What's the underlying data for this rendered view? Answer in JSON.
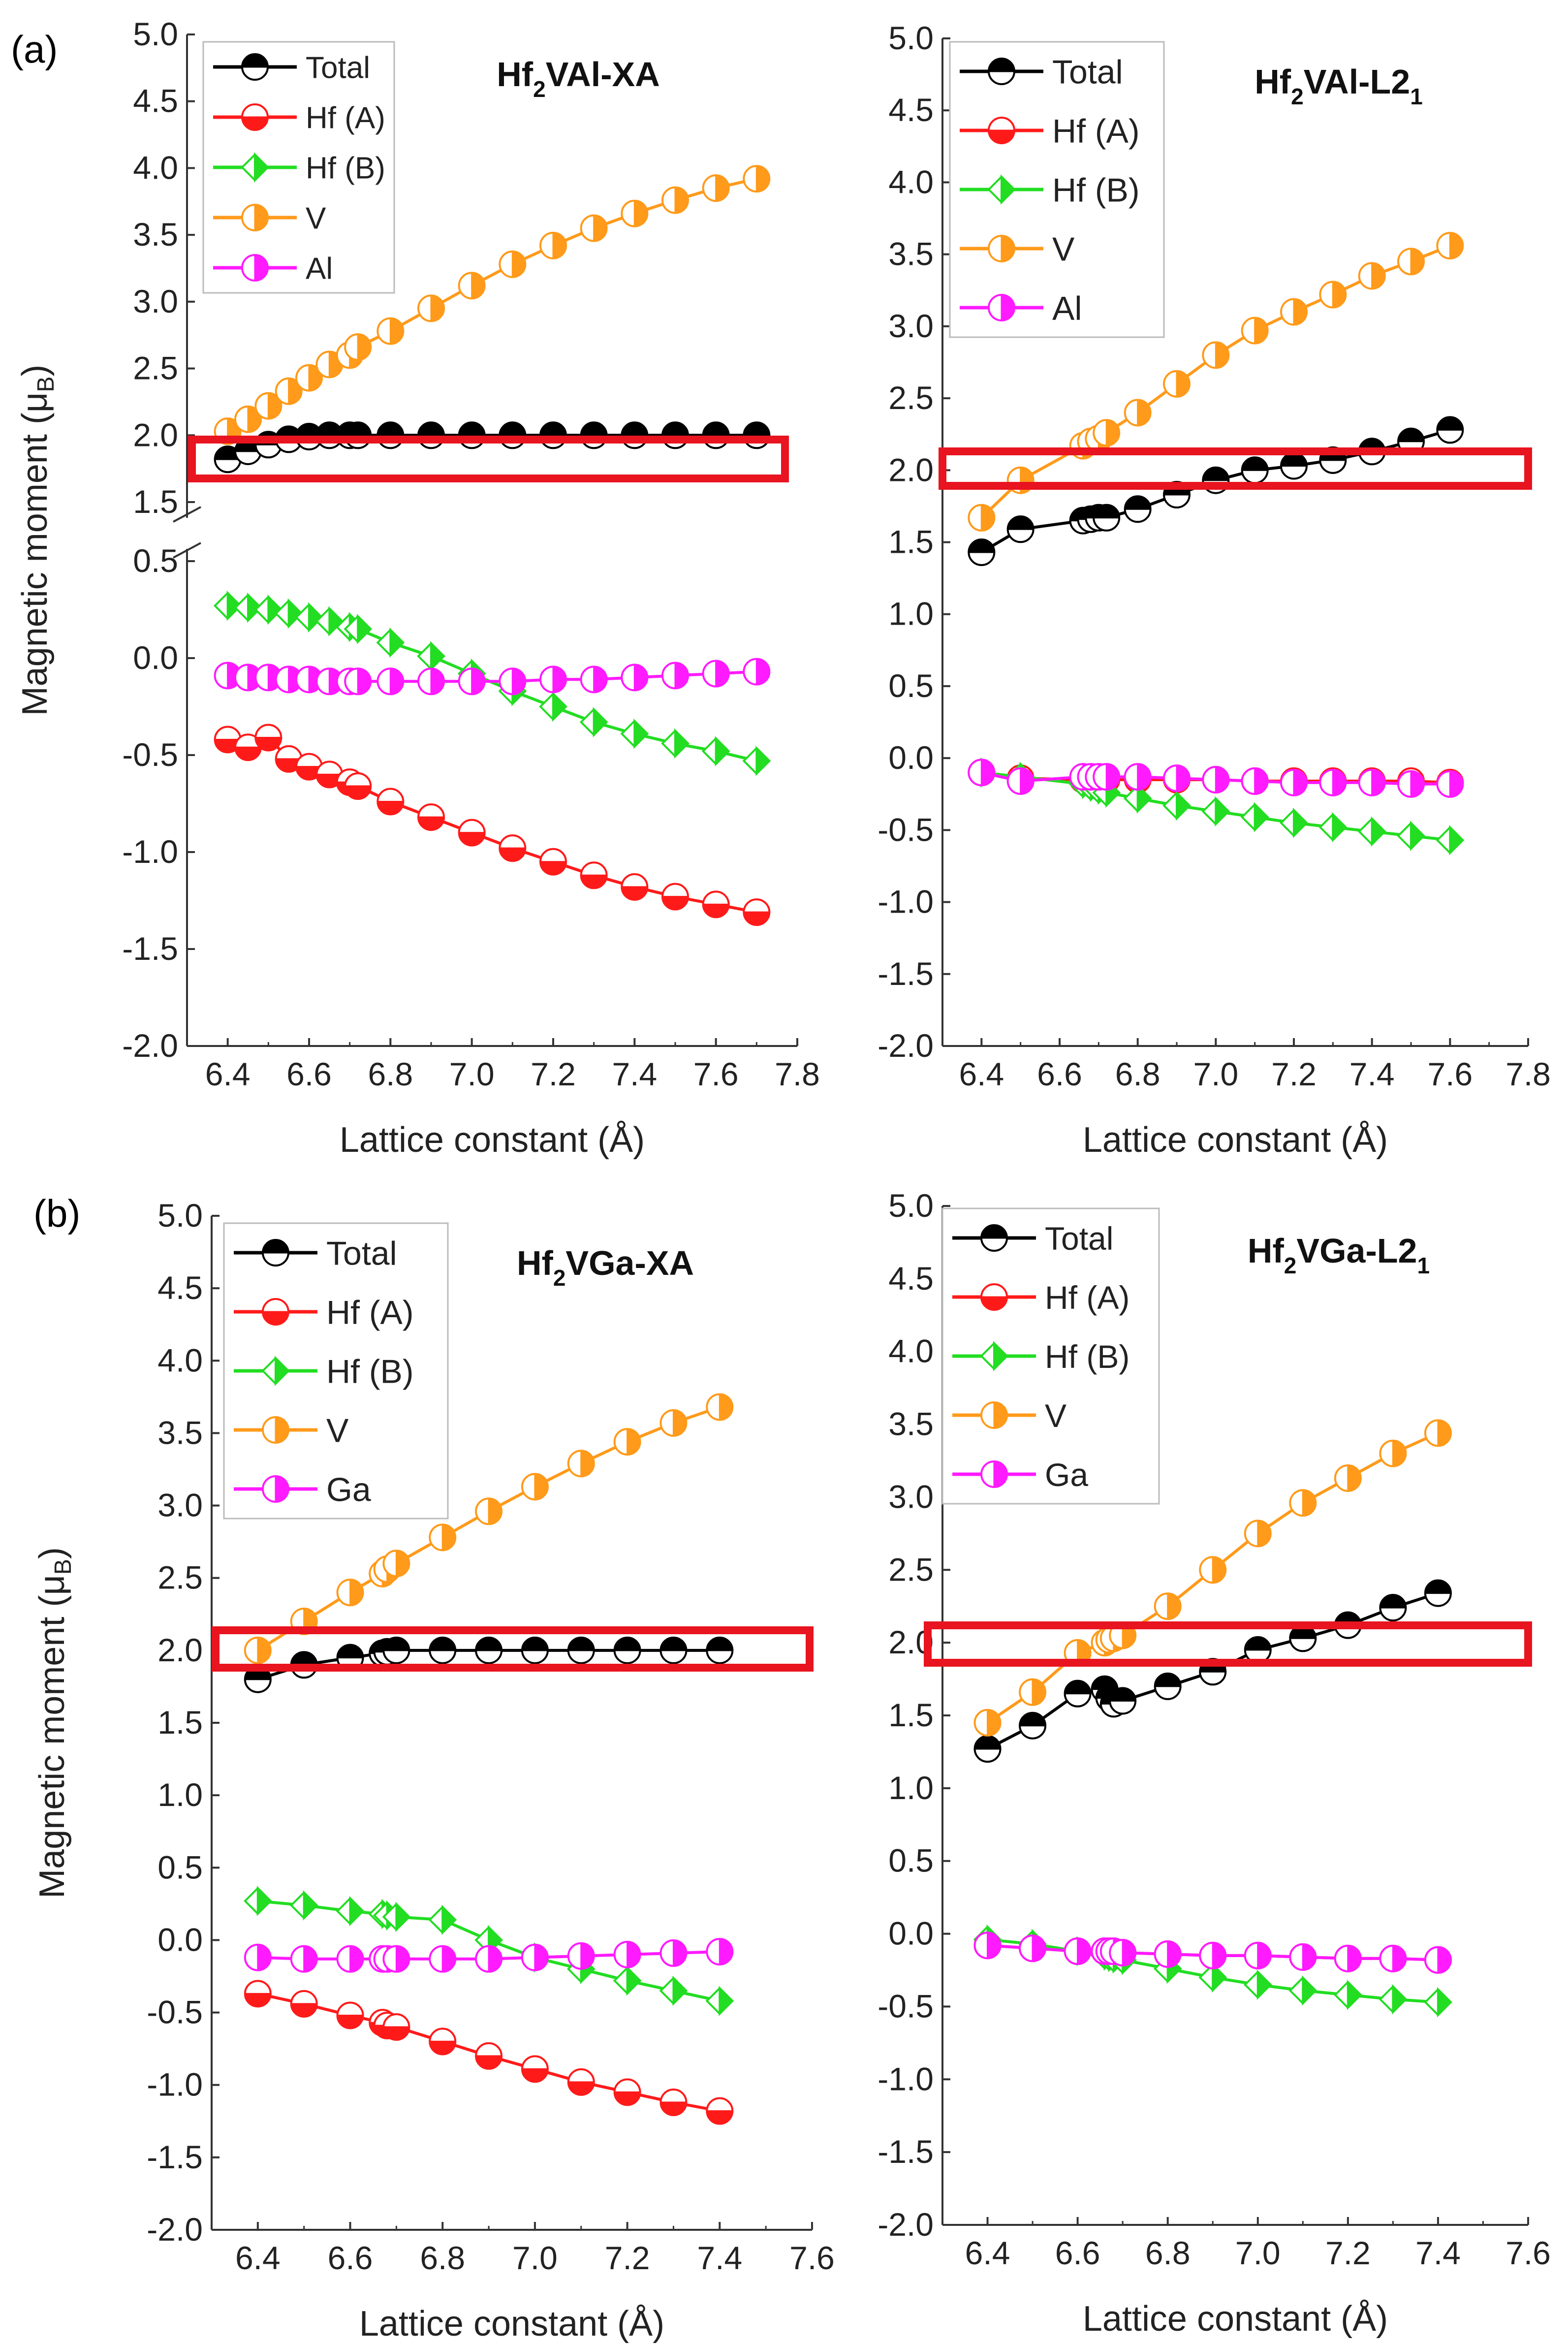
{
  "figure": {
    "panel_a_label": "(a)",
    "panel_b_label": "(b)"
  },
  "chart_data": [
    {
      "type": "line",
      "title_main": "Hf",
      "title_sub": "2",
      "title_rest": "VAl-XA",
      "xlabel": "Lattice constant (Å)",
      "ylabel": "Magnetic moment (μB)",
      "ylabel_main": "Magnetic moment (μ",
      "ylabel_sub": "B",
      "ylabel_close": ")",
      "xlim": [
        6.3,
        7.8
      ],
      "ylim": [
        -2.0,
        5.0
      ],
      "broken_axis": true,
      "x_ticks": [
        "6.4",
        "6.6",
        "6.8",
        "7.0",
        "7.2",
        "7.4",
        "7.6",
        "7.8"
      ],
      "x_tick_values": [
        6.4,
        6.6,
        6.8,
        7.0,
        7.2,
        7.4,
        7.6,
        7.8
      ],
      "y_ticks_lower": [
        "-2.0",
        "-1.5",
        "-1.0",
        "-0.5",
        "0.0",
        "0.5"
      ],
      "y_tick_values_lower": [
        -2.0,
        -1.5,
        -1.0,
        -0.5,
        0.0,
        0.5
      ],
      "y_ticks_upper": [
        "1.5",
        "2.0",
        "2.5",
        "3.0",
        "3.5",
        "4.0",
        "4.5",
        "5.0"
      ],
      "y_tick_values_upper": [
        1.5,
        2.0,
        2.5,
        3.0,
        3.5,
        4.0,
        4.5,
        5.0
      ],
      "highlight_y": 2.0,
      "highlight_color": "#e8141f",
      "legend_position": "top-left",
      "series": [
        {
          "name": "Total",
          "color": "#000000",
          "marker": "circle-top",
          "x": [
            6.4,
            6.45,
            6.5,
            6.55,
            6.6,
            6.65,
            6.7,
            6.72,
            6.8,
            6.9,
            7.0,
            7.1,
            7.2,
            7.3,
            7.4,
            7.5,
            7.6,
            7.7
          ],
          "y": [
            1.82,
            1.88,
            1.93,
            1.97,
            1.99,
            2.0,
            2.0,
            2.0,
            2.0,
            2.0,
            2.0,
            2.0,
            2.0,
            2.0,
            2.0,
            2.0,
            2.0,
            2.0
          ]
        },
        {
          "name": "Hf (A)",
          "color": "#ff1a1a",
          "marker": "circle-bottom",
          "x": [
            6.4,
            6.45,
            6.5,
            6.55,
            6.6,
            6.65,
            6.7,
            6.72,
            6.8,
            6.9,
            7.0,
            7.1,
            7.2,
            7.3,
            7.4,
            7.5,
            7.6,
            7.7
          ],
          "y": [
            -0.42,
            -0.46,
            -0.41,
            -0.52,
            -0.56,
            -0.6,
            -0.64,
            -0.66,
            -0.74,
            -0.82,
            -0.9,
            -0.98,
            -1.05,
            -1.12,
            -1.18,
            -1.23,
            -1.27,
            -1.31
          ]
        },
        {
          "name": "Hf (B)",
          "color": "#22dd22",
          "marker": "diamond-right",
          "x": [
            6.4,
            6.45,
            6.5,
            6.55,
            6.6,
            6.65,
            6.7,
            6.72,
            6.8,
            6.9,
            7.0,
            7.1,
            7.2,
            7.3,
            7.4,
            7.5,
            7.6,
            7.7
          ],
          "y": [
            0.27,
            0.26,
            0.25,
            0.23,
            0.21,
            0.19,
            0.16,
            0.15,
            0.08,
            0.01,
            -0.08,
            -0.17,
            -0.25,
            -0.33,
            -0.39,
            -0.44,
            -0.48,
            -0.53
          ]
        },
        {
          "name": "V",
          "color": "#ff9a1a",
          "marker": "circle-right",
          "x": [
            6.4,
            6.45,
            6.5,
            6.55,
            6.6,
            6.65,
            6.7,
            6.72,
            6.8,
            6.9,
            7.0,
            7.1,
            7.2,
            7.3,
            7.4,
            7.5,
            7.6,
            7.7
          ],
          "y": [
            2.03,
            2.12,
            2.22,
            2.33,
            2.43,
            2.53,
            2.6,
            2.66,
            2.78,
            2.95,
            3.12,
            3.28,
            3.42,
            3.55,
            3.66,
            3.76,
            3.85,
            3.92
          ]
        },
        {
          "name": "Al",
          "color": "#ff1aff",
          "marker": "circle-right",
          "x": [
            6.4,
            6.45,
            6.5,
            6.55,
            6.6,
            6.65,
            6.7,
            6.72,
            6.8,
            6.9,
            7.0,
            7.1,
            7.2,
            7.3,
            7.4,
            7.5,
            7.6,
            7.7
          ],
          "y": [
            -0.09,
            -0.1,
            -0.1,
            -0.11,
            -0.11,
            -0.12,
            -0.12,
            -0.12,
            -0.12,
            -0.12,
            -0.12,
            -0.12,
            -0.11,
            -0.11,
            -0.1,
            -0.09,
            -0.08,
            -0.07
          ]
        }
      ]
    },
    {
      "type": "line",
      "title_main": "Hf",
      "title_sub": "2",
      "title_rest": "VAl-L2",
      "title_sub2": "1",
      "xlabel": "Lattice constant (Å)",
      "xlim": [
        6.3,
        7.8
      ],
      "ylim": [
        -2.0,
        5.0
      ],
      "broken_axis": false,
      "x_ticks": [
        "6.4",
        "6.6",
        "6.8",
        "7.0",
        "7.2",
        "7.4",
        "7.6",
        "7.8"
      ],
      "x_tick_values": [
        6.4,
        6.6,
        6.8,
        7.0,
        7.2,
        7.4,
        7.6,
        7.8
      ],
      "y_ticks": [
        "-2.0",
        "-1.5",
        "-1.0",
        "-0.5",
        "0.0",
        "0.5",
        "1.0",
        "1.5",
        "2.0",
        "2.5",
        "3.0",
        "3.5",
        "4.0",
        "4.5",
        "5.0"
      ],
      "y_tick_values": [
        -2.0,
        -1.5,
        -1.0,
        -0.5,
        0.0,
        0.5,
        1.0,
        1.5,
        2.0,
        2.5,
        3.0,
        3.5,
        4.0,
        4.5,
        5.0
      ],
      "highlight_y": 2.0,
      "highlight_color": "#e8141f",
      "legend_position": "top-left",
      "series": [
        {
          "name": "Total",
          "color": "#000000",
          "marker": "circle-top",
          "x": [
            6.4,
            6.5,
            6.66,
            6.68,
            6.7,
            6.72,
            6.8,
            6.9,
            7.0,
            7.1,
            7.2,
            7.3,
            7.4,
            7.5,
            7.6
          ],
          "y": [
            1.43,
            1.59,
            1.65,
            1.66,
            1.67,
            1.67,
            1.73,
            1.83,
            1.93,
            2.0,
            2.03,
            2.07,
            2.13,
            2.2,
            2.28
          ]
        },
        {
          "name": "Hf (A)",
          "color": "#ff1a1a",
          "marker": "circle-bottom",
          "x": [
            6.4,
            6.5,
            6.66,
            6.68,
            6.7,
            6.72,
            6.8,
            6.9,
            7.0,
            7.1,
            7.2,
            7.3,
            7.4,
            7.5,
            7.6
          ],
          "y": [
            -0.1,
            -0.14,
            -0.15,
            -0.15,
            -0.15,
            -0.15,
            -0.15,
            -0.15,
            -0.15,
            -0.16,
            -0.16,
            -0.16,
            -0.16,
            -0.16,
            -0.17
          ]
        },
        {
          "name": "Hf (B)",
          "color": "#22dd22",
          "marker": "diamond-right",
          "x": [
            6.4,
            6.5,
            6.66,
            6.68,
            6.7,
            6.72,
            6.8,
            6.9,
            7.0,
            7.1,
            7.2,
            7.3,
            7.4,
            7.5,
            7.6
          ],
          "y": [
            -0.1,
            -0.13,
            -0.18,
            -0.2,
            -0.22,
            -0.24,
            -0.28,
            -0.33,
            -0.37,
            -0.41,
            -0.45,
            -0.48,
            -0.51,
            -0.54,
            -0.57
          ]
        },
        {
          "name": "V",
          "color": "#ff9a1a",
          "marker": "circle-right",
          "x": [
            6.4,
            6.5,
            6.66,
            6.68,
            6.7,
            6.72,
            6.8,
            6.9,
            7.0,
            7.1,
            7.2,
            7.3,
            7.4,
            7.5,
            7.6
          ],
          "y": [
            1.67,
            1.93,
            2.17,
            2.2,
            2.22,
            2.26,
            2.4,
            2.6,
            2.8,
            2.97,
            3.1,
            3.22,
            3.35,
            3.45,
            3.56
          ]
        },
        {
          "name": "Al",
          "color": "#ff1aff",
          "marker": "circle-right",
          "x": [
            6.4,
            6.5,
            6.66,
            6.68,
            6.7,
            6.72,
            6.8,
            6.9,
            7.0,
            7.1,
            7.2,
            7.3,
            7.4,
            7.5,
            7.6
          ],
          "y": [
            -0.1,
            -0.16,
            -0.13,
            -0.13,
            -0.13,
            -0.13,
            -0.13,
            -0.14,
            -0.15,
            -0.16,
            -0.17,
            -0.17,
            -0.17,
            -0.18,
            -0.18
          ]
        }
      ]
    },
    {
      "type": "line",
      "title_main": "Hf",
      "title_sub": "2",
      "title_rest": "VGa-XA",
      "xlabel": "Lattice constant (Å)",
      "ylabel": "Magnetic moment (μB)",
      "ylabel_main": "Magnetic moment (μ",
      "ylabel_sub": "B",
      "ylabel_close": ")",
      "xlim": [
        6.3,
        7.6
      ],
      "ylim": [
        -2.0,
        5.0
      ],
      "broken_axis": false,
      "x_ticks": [
        "6.4",
        "6.6",
        "6.8",
        "7.0",
        "7.2",
        "7.4",
        "7.6"
      ],
      "x_tick_values": [
        6.4,
        6.6,
        6.8,
        7.0,
        7.2,
        7.4,
        7.6
      ],
      "y_ticks": [
        "-2.0",
        "-1.5",
        "-1.0",
        "-0.5",
        "0.0",
        "0.5",
        "1.0",
        "1.5",
        "2.0",
        "2.5",
        "3.0",
        "3.5",
        "4.0",
        "4.5",
        "5.0"
      ],
      "y_tick_values": [
        -2.0,
        -1.5,
        -1.0,
        -0.5,
        0.0,
        0.5,
        1.0,
        1.5,
        2.0,
        2.5,
        3.0,
        3.5,
        4.0,
        4.5,
        5.0
      ],
      "highlight_y": 2.0,
      "highlight_color": "#e8141f",
      "legend_position": "top-left",
      "series": [
        {
          "name": "Total",
          "color": "#000000",
          "marker": "circle-top",
          "x": [
            6.4,
            6.5,
            6.6,
            6.67,
            6.68,
            6.7,
            6.8,
            6.9,
            7.0,
            7.1,
            7.2,
            7.3,
            7.4
          ],
          "y": [
            1.8,
            1.9,
            1.95,
            1.98,
            1.99,
            2.0,
            2.0,
            2.0,
            2.0,
            2.0,
            2.0,
            2.0,
            2.0
          ]
        },
        {
          "name": "Hf (A)",
          "color": "#ff1a1a",
          "marker": "circle-bottom",
          "x": [
            6.4,
            6.5,
            6.6,
            6.67,
            6.68,
            6.7,
            6.8,
            6.9,
            7.0,
            7.1,
            7.2,
            7.3,
            7.4
          ],
          "y": [
            -0.37,
            -0.44,
            -0.52,
            -0.57,
            -0.59,
            -0.6,
            -0.7,
            -0.8,
            -0.89,
            -0.98,
            -1.05,
            -1.12,
            -1.18
          ]
        },
        {
          "name": "Hf (B)",
          "color": "#22dd22",
          "marker": "diamond-right",
          "x": [
            6.4,
            6.5,
            6.6,
            6.67,
            6.68,
            6.7,
            6.8,
            6.9,
            7.0,
            7.1,
            7.2,
            7.3,
            7.4
          ],
          "y": [
            0.27,
            0.24,
            0.2,
            0.18,
            0.17,
            0.16,
            0.14,
            0.0,
            -0.12,
            -0.2,
            -0.28,
            -0.35,
            -0.42
          ]
        },
        {
          "name": "V",
          "color": "#ff9a1a",
          "marker": "circle-right",
          "x": [
            6.4,
            6.5,
            6.6,
            6.67,
            6.68,
            6.7,
            6.8,
            6.9,
            7.0,
            7.1,
            7.2,
            7.3,
            7.4
          ],
          "y": [
            2.0,
            2.2,
            2.4,
            2.53,
            2.56,
            2.6,
            2.78,
            2.96,
            3.13,
            3.29,
            3.44,
            3.57,
            3.68
          ]
        },
        {
          "name": "Ga",
          "color": "#ff1aff",
          "marker": "circle-right",
          "x": [
            6.4,
            6.5,
            6.6,
            6.67,
            6.68,
            6.7,
            6.8,
            6.9,
            7.0,
            7.1,
            7.2,
            7.3,
            7.4
          ],
          "y": [
            -0.12,
            -0.13,
            -0.13,
            -0.13,
            -0.13,
            -0.13,
            -0.13,
            -0.13,
            -0.12,
            -0.11,
            -0.1,
            -0.09,
            -0.08
          ]
        }
      ]
    },
    {
      "type": "line",
      "title_main": "Hf",
      "title_sub": "2",
      "title_rest": "VGa-L2",
      "title_sub2": "1",
      "xlabel": "Lattice constant (Å)",
      "xlim": [
        6.3,
        7.6
      ],
      "ylim": [
        -2.0,
        5.0
      ],
      "broken_axis": false,
      "x_ticks": [
        "6.4",
        "6.6",
        "6.8",
        "7.0",
        "7.2",
        "7.4",
        "7.6"
      ],
      "x_tick_values": [
        6.4,
        6.6,
        6.8,
        7.0,
        7.2,
        7.4,
        7.6
      ],
      "y_ticks": [
        "-2.0",
        "-1.5",
        "-1.0",
        "-0.5",
        "0.0",
        "0.5",
        "1.0",
        "1.5",
        "2.0",
        "2.5",
        "3.0",
        "3.5",
        "4.0",
        "4.5",
        "5.0"
      ],
      "y_tick_values": [
        -2.0,
        -1.5,
        -1.0,
        -0.5,
        0.0,
        0.5,
        1.0,
        1.5,
        2.0,
        2.5,
        3.0,
        3.5,
        4.0,
        4.5,
        5.0
      ],
      "highlight_y": 2.0,
      "highlight_color": "#e8141f",
      "legend_position": "top-left",
      "series": [
        {
          "name": "Total",
          "color": "#000000",
          "marker": "circle-top",
          "x": [
            6.4,
            6.5,
            6.6,
            6.66,
            6.67,
            6.68,
            6.7,
            6.8,
            6.9,
            7.0,
            7.1,
            7.2,
            7.3,
            7.4
          ],
          "y": [
            1.27,
            1.43,
            1.65,
            1.68,
            1.62,
            1.58,
            1.6,
            1.7,
            1.8,
            1.95,
            2.03,
            2.12,
            2.24,
            2.34
          ]
        },
        {
          "name": "Hf (A)",
          "color": "#ff1a1a",
          "marker": "circle-bottom",
          "x": [
            6.4,
            6.5,
            6.6,
            6.66,
            6.67,
            6.68,
            6.7,
            6.8,
            6.9,
            7.0,
            7.1,
            7.2,
            7.3,
            7.4
          ],
          "y": [
            -0.08,
            -0.1,
            -0.12,
            -0.12,
            -0.12,
            -0.12,
            -0.13,
            -0.14,
            -0.15,
            -0.15,
            -0.16,
            -0.17,
            -0.17,
            -0.18
          ]
        },
        {
          "name": "Hf (B)",
          "color": "#22dd22",
          "marker": "diamond-right",
          "x": [
            6.4,
            6.5,
            6.6,
            6.66,
            6.67,
            6.68,
            6.7,
            6.8,
            6.9,
            7.0,
            7.1,
            7.2,
            7.3,
            7.4
          ],
          "y": [
            -0.04,
            -0.07,
            -0.12,
            -0.15,
            -0.16,
            -0.17,
            -0.18,
            -0.24,
            -0.3,
            -0.35,
            -0.39,
            -0.42,
            -0.45,
            -0.47
          ]
        },
        {
          "name": "V",
          "color": "#ff9a1a",
          "marker": "circle-right",
          "x": [
            6.4,
            6.5,
            6.6,
            6.66,
            6.67,
            6.68,
            6.7,
            6.8,
            6.9,
            7.0,
            7.1,
            7.2,
            7.3,
            7.4
          ],
          "y": [
            1.45,
            1.66,
            1.93,
            2.0,
            2.02,
            2.03,
            2.05,
            2.25,
            2.5,
            2.75,
            2.96,
            3.13,
            3.3,
            3.44
          ]
        },
        {
          "name": "Ga",
          "color": "#ff1aff",
          "marker": "circle-right",
          "x": [
            6.4,
            6.5,
            6.6,
            6.66,
            6.67,
            6.68,
            6.7,
            6.8,
            6.9,
            7.0,
            7.1,
            7.2,
            7.3,
            7.4
          ],
          "y": [
            -0.08,
            -0.1,
            -0.12,
            -0.12,
            -0.12,
            -0.12,
            -0.13,
            -0.14,
            -0.15,
            -0.15,
            -0.16,
            -0.17,
            -0.17,
            -0.18
          ]
        }
      ]
    }
  ]
}
